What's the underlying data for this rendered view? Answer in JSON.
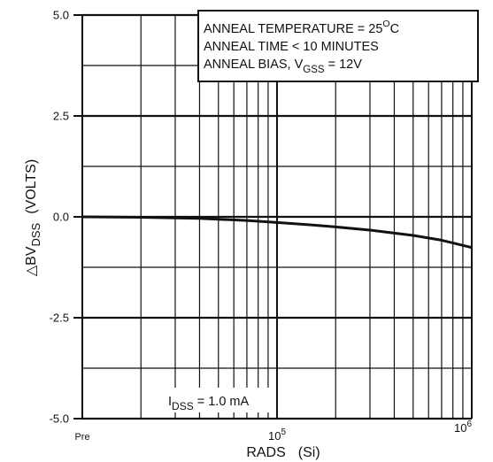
{
  "chart_data": {
    "type": "line",
    "x_scale": "log",
    "grid": true,
    "xlabel": "RADS",
    "xlabel_paren": "(Si)",
    "ylabel": {
      "prefix": "△BV",
      "sub": "DSS",
      "unit": "(VOLTS)"
    },
    "ylim": [
      -5.0,
      5.0
    ],
    "xlim": [
      10000,
      1000000
    ],
    "y_ticks": [
      {
        "value": 5.0,
        "label": "5.0"
      },
      {
        "value": 2.5,
        "label": "2.5"
      },
      {
        "value": 0.0,
        "label": "0.0"
      },
      {
        "value": -2.5,
        "label": "-2.5"
      },
      {
        "value": -5.0,
        "label": "-5.0"
      }
    ],
    "x_ticks": [
      {
        "value": 10000,
        "label": "Pre"
      },
      {
        "value": 100000,
        "base": "10",
        "exp": "5"
      },
      {
        "value": 1000000,
        "base": "10",
        "exp": "6"
      }
    ],
    "series": [
      {
        "x": [
          10000,
          20000,
          40000,
          70000,
          100000,
          150000,
          200000,
          300000,
          500000,
          700000,
          1000000
        ],
        "y": [
          0.0,
          -0.01,
          -0.04,
          -0.09,
          -0.14,
          -0.2,
          -0.25,
          -0.33,
          -0.46,
          -0.58,
          -0.76
        ],
        "color": "#111111"
      }
    ],
    "annotations": {
      "box_lines": [
        {
          "text": "ANNEAL TEMPERATURE = 25",
          "sup": "O",
          "tail": "C"
        },
        {
          "text": "ANNEAL TIME < 10 MINUTES"
        },
        {
          "text": "ANNEAL BIAS, V",
          "sub": "GSS",
          "tail": " = 12V"
        }
      ],
      "condition": {
        "prefix": "I",
        "sub": "DSS",
        "tail": " = 1.0 mA"
      }
    }
  }
}
